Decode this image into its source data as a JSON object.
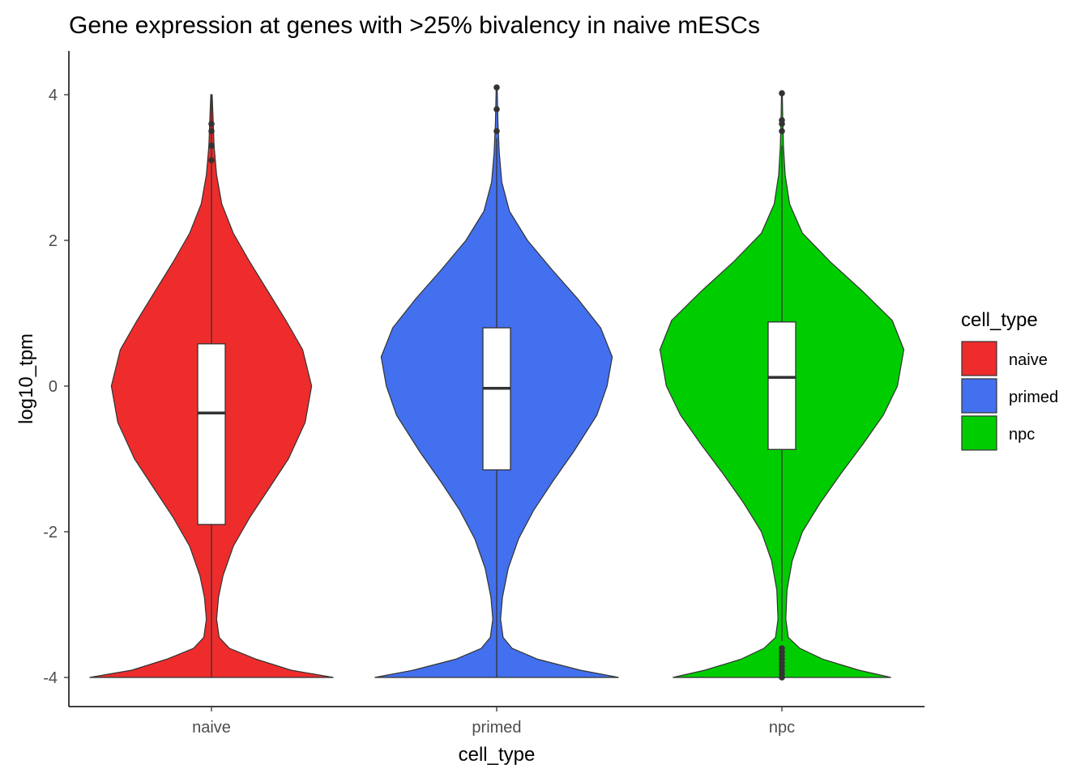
{
  "chart_data": {
    "type": "violin",
    "title": "Gene expression at genes with >25% bivalency in naive mESCs",
    "xlabel": "cell_type",
    "ylabel": "log10_tpm",
    "ylim": [
      -4.4,
      4.6
    ],
    "yticks": [
      -4,
      -2,
      0,
      2,
      4
    ],
    "ytick_labels": [
      "-4",
      "-2",
      "0",
      "2",
      "4"
    ],
    "categories": [
      "naive",
      "primed",
      "npc"
    ],
    "grid": false,
    "legend": {
      "title": "cell_type",
      "position": "right",
      "entries": [
        "naive",
        "primed",
        "npc"
      ]
    },
    "series": [
      {
        "name": "naive",
        "color": "#EE2C2C",
        "box": {
          "whisker_low": -4.0,
          "q1": -1.9,
          "median": -0.37,
          "q3": 0.58,
          "whisker_high": 4.0
        },
        "outliers": [
          3.1,
          3.3,
          3.5,
          3.6
        ],
        "density": [
          [
            -4.0,
            0.95
          ],
          [
            -3.9,
            0.62
          ],
          [
            -3.75,
            0.35
          ],
          [
            -3.6,
            0.14
          ],
          [
            -3.45,
            0.06
          ],
          [
            -3.2,
            0.04
          ],
          [
            -2.9,
            0.055
          ],
          [
            -2.6,
            0.09
          ],
          [
            -2.2,
            0.17
          ],
          [
            -1.8,
            0.3
          ],
          [
            -1.4,
            0.45
          ],
          [
            -1.0,
            0.6
          ],
          [
            -0.5,
            0.73
          ],
          [
            0.0,
            0.78
          ],
          [
            0.5,
            0.71
          ],
          [
            0.9,
            0.58
          ],
          [
            1.3,
            0.44
          ],
          [
            1.7,
            0.3
          ],
          [
            2.1,
            0.17
          ],
          [
            2.5,
            0.08
          ],
          [
            2.9,
            0.04
          ],
          [
            3.3,
            0.02
          ],
          [
            3.7,
            0.012
          ],
          [
            4.0,
            0.005
          ]
        ]
      },
      {
        "name": "primed",
        "color": "#4370EE",
        "box": {
          "whisker_low": -4.0,
          "q1": -1.15,
          "median": -0.03,
          "q3": 0.8,
          "whisker_high": 3.4
        },
        "outliers": [
          3.5,
          3.8,
          4.1
        ],
        "density": [
          [
            -4.0,
            0.95
          ],
          [
            -3.9,
            0.65
          ],
          [
            -3.75,
            0.32
          ],
          [
            -3.6,
            0.12
          ],
          [
            -3.45,
            0.05
          ],
          [
            -3.2,
            0.03
          ],
          [
            -2.9,
            0.045
          ],
          [
            -2.5,
            0.09
          ],
          [
            -2.1,
            0.17
          ],
          [
            -1.7,
            0.29
          ],
          [
            -1.3,
            0.44
          ],
          [
            -0.9,
            0.6
          ],
          [
            -0.4,
            0.78
          ],
          [
            0.0,
            0.86
          ],
          [
            0.4,
            0.9
          ],
          [
            0.8,
            0.81
          ],
          [
            1.2,
            0.63
          ],
          [
            1.6,
            0.43
          ],
          [
            2.0,
            0.24
          ],
          [
            2.4,
            0.1
          ],
          [
            2.8,
            0.04
          ],
          [
            3.2,
            0.02
          ],
          [
            3.6,
            0.01
          ],
          [
            4.1,
            0.004
          ]
        ]
      },
      {
        "name": "npc",
        "color": "#00CD00",
        "box": {
          "whisker_low": -3.5,
          "q1": -0.87,
          "median": 0.12,
          "q3": 0.88,
          "whisker_high": 3.3
        },
        "outliers": [
          -4.0,
          -3.95,
          -3.9,
          -3.85,
          -3.8,
          -3.75,
          -3.7,
          -3.65,
          -3.6,
          3.5,
          3.6,
          3.65,
          4.02
        ],
        "density": [
          [
            -4.0,
            0.85
          ],
          [
            -3.9,
            0.6
          ],
          [
            -3.75,
            0.32
          ],
          [
            -3.6,
            0.14
          ],
          [
            -3.45,
            0.05
          ],
          [
            -3.2,
            0.03
          ],
          [
            -2.8,
            0.04
          ],
          [
            -2.4,
            0.08
          ],
          [
            -2.0,
            0.16
          ],
          [
            -1.6,
            0.3
          ],
          [
            -1.2,
            0.46
          ],
          [
            -0.8,
            0.63
          ],
          [
            -0.4,
            0.79
          ],
          [
            0.0,
            0.9
          ],
          [
            0.5,
            0.95
          ],
          [
            0.9,
            0.86
          ],
          [
            1.3,
            0.63
          ],
          [
            1.7,
            0.38
          ],
          [
            2.1,
            0.16
          ],
          [
            2.5,
            0.06
          ],
          [
            2.9,
            0.025
          ],
          [
            3.3,
            0.012
          ],
          [
            3.7,
            0.006
          ],
          [
            4.0,
            0.003
          ]
        ]
      }
    ]
  }
}
